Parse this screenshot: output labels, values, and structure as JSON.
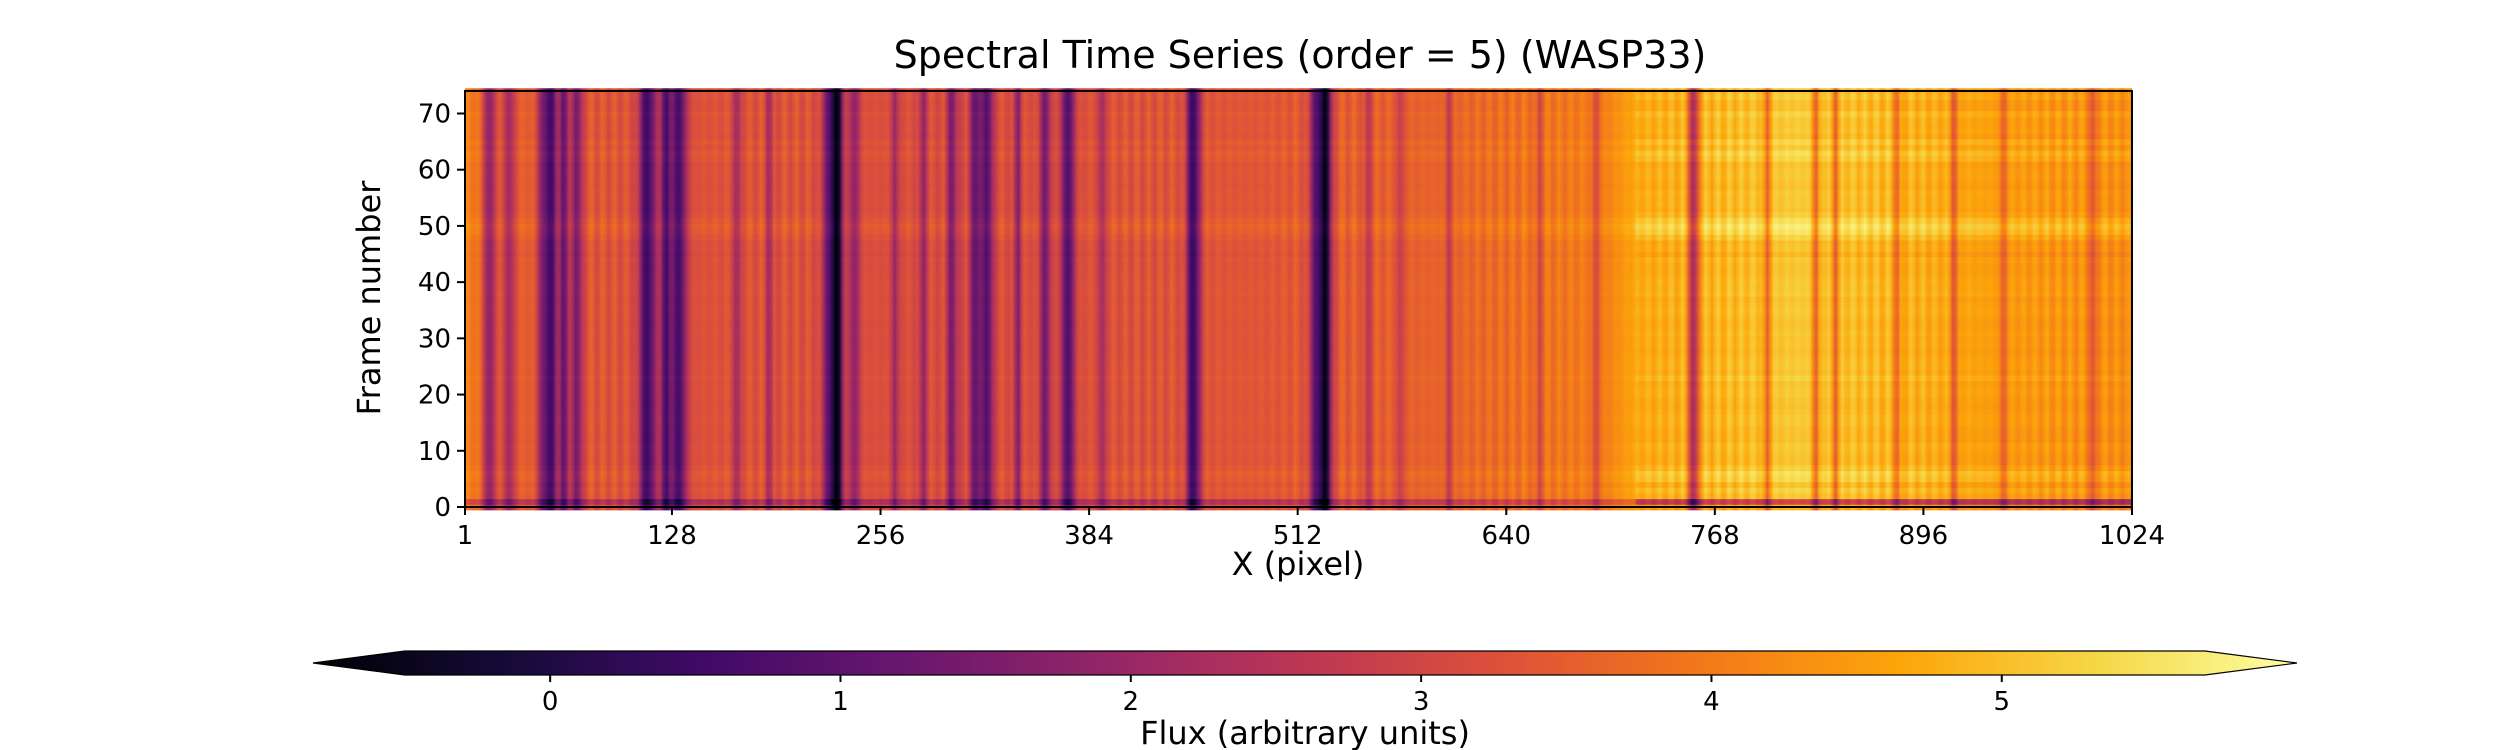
{
  "chart_data": {
    "type": "heatmap",
    "title": "Spectral Time Series (order = 5) (WASP33)",
    "xlabel": "X (pixel)",
    "ylabel": "Frame number",
    "xlim": [
      1,
      1024
    ],
    "ylim": [
      0,
      74
    ],
    "xticks": [
      1,
      128,
      256,
      384,
      512,
      640,
      768,
      896,
      1024
    ],
    "yticks": [
      0,
      10,
      20,
      30,
      40,
      50,
      60,
      70
    ],
    "n_frames": 75,
    "colormap": "inferno",
    "colorbar": {
      "label": "Flux (arbitrary units)",
      "ticks": [
        0,
        1,
        2,
        3,
        4,
        5
      ],
      "vmin": -0.5,
      "vmax": 5.7,
      "extend": "both",
      "orientation": "horizontal",
      "placement": "bottom"
    },
    "baseline_flux": [
      [
        1,
        3.9
      ],
      [
        40,
        3.4
      ],
      [
        100,
        3.2
      ],
      [
        200,
        3.2
      ],
      [
        300,
        3.1
      ],
      [
        400,
        3.2
      ],
      [
        500,
        3.3
      ],
      [
        600,
        3.5
      ],
      [
        700,
        3.9
      ],
      [
        720,
        4.5
      ],
      [
        760,
        4.6
      ],
      [
        820,
        4.9
      ],
      [
        860,
        4.7
      ],
      [
        950,
        4.3
      ],
      [
        1024,
        4.1
      ]
    ],
    "absorption_lines": [
      [
        16,
        1.9,
        4
      ],
      [
        28,
        1.4,
        4
      ],
      [
        50,
        2.1,
        4
      ],
      [
        55,
        2.0,
        3
      ],
      [
        62,
        2.1,
        3
      ],
      [
        70,
        1.9,
        3
      ],
      [
        113,
        2.6,
        5
      ],
      [
        124,
        2.2,
        3
      ],
      [
        132,
        2.4,
        5
      ],
      [
        168,
        1.3,
        2
      ],
      [
        188,
        1.1,
        2
      ],
      [
        226,
        2.4,
        5
      ],
      [
        230,
        2.3,
        3
      ],
      [
        240,
        1.4,
        3
      ],
      [
        265,
        1.2,
        2
      ],
      [
        282,
        1.3,
        2
      ],
      [
        300,
        1.6,
        3
      ],
      [
        315,
        2.0,
        4
      ],
      [
        322,
        2.1,
        3
      ],
      [
        340,
        1.5,
        2
      ],
      [
        357,
        1.8,
        3
      ],
      [
        371,
        2.3,
        4
      ],
      [
        392,
        1.2,
        2
      ],
      [
        448,
        2.8,
        4
      ],
      [
        525,
        2.7,
        5
      ],
      [
        530,
        2.4,
        3
      ],
      [
        555,
        1.0,
        2
      ],
      [
        575,
        0.9,
        2
      ],
      [
        605,
        0.9,
        2
      ],
      [
        660,
        0.8,
        2
      ],
      [
        695,
        1.0,
        2
      ],
      [
        755,
        2.6,
        3
      ],
      [
        800,
        1.4,
        2
      ],
      [
        830,
        1.5,
        2
      ],
      [
        842,
        1.3,
        2
      ],
      [
        880,
        1.2,
        2
      ],
      [
        915,
        1.3,
        2
      ],
      [
        945,
        1.0,
        2
      ],
      [
        1000,
        1.2,
        2
      ]
    ],
    "frame_offsets": [
      [
        0,
        -0.4
      ],
      [
        1,
        -3.2
      ],
      [
        3,
        0.3
      ],
      [
        5,
        0.45
      ],
      [
        6,
        0.6
      ],
      [
        7,
        0.2
      ],
      [
        12,
        -0.1
      ],
      [
        23,
        0.25
      ],
      [
        30,
        -0.05
      ],
      [
        38,
        0.15
      ],
      [
        45,
        -0.25
      ],
      [
        48,
        0.3
      ],
      [
        49,
        0.7
      ],
      [
        50,
        0.9
      ],
      [
        51,
        0.6
      ],
      [
        52,
        0.2
      ],
      [
        56,
        0.1
      ],
      [
        62,
        0.35
      ],
      [
        63,
        0.55
      ],
      [
        65,
        0.4
      ],
      [
        67,
        0.1
      ],
      [
        70,
        0.3
      ],
      [
        73,
        0.2
      ]
    ]
  }
}
